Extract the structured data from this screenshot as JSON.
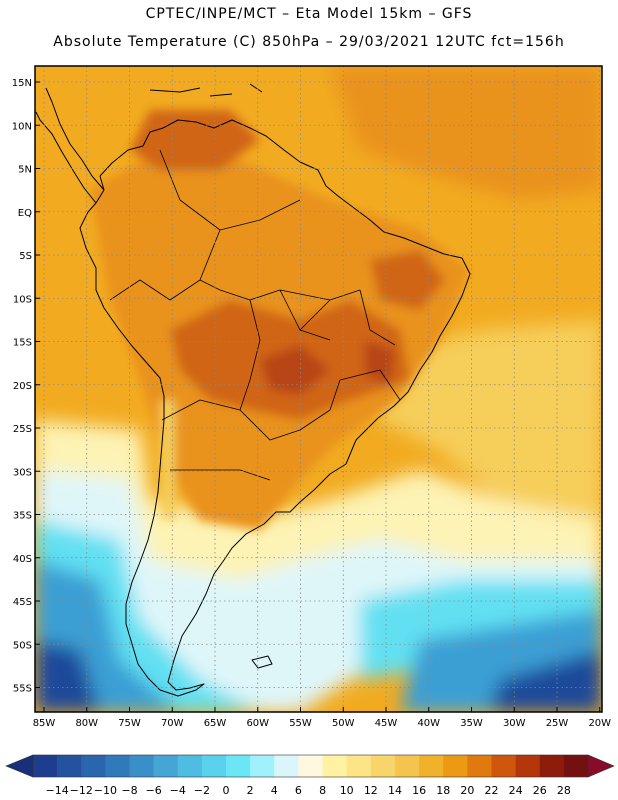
{
  "header": {
    "line1": "CPTEC/INPE/MCT –  Eta Model 15km – GFS",
    "line2": "Absolute Temperature (C) 850hPa – 29/03/2021 12UTC fct=156h"
  },
  "axes": {
    "lat_labels": [
      "15N",
      "10N",
      "5N",
      "EQ",
      "5S",
      "10S",
      "15S",
      "20S",
      "25S",
      "30S",
      "35S",
      "40S",
      "45S",
      "50S",
      "55S"
    ],
    "lon_labels": [
      "85W",
      "80W",
      "75W",
      "70W",
      "65W",
      "60W",
      "55W",
      "50W",
      "45W",
      "40W",
      "35W",
      "30W",
      "25W",
      "20W"
    ]
  },
  "colorbar": {
    "labels": [
      "-14",
      "-12",
      "-10",
      "-8",
      "-6",
      "-4",
      "-2",
      "0",
      "2",
      "4",
      "6",
      "8",
      "10",
      "12",
      "14",
      "16",
      "18",
      "20",
      "22",
      "24",
      "26",
      "28"
    ],
    "colors": [
      "#1f3d8f",
      "#24529e",
      "#2a66ae",
      "#3079bb",
      "#3a8fc8",
      "#45a6d6",
      "#4fbce2",
      "#5ad2ed",
      "#6ae6f5",
      "#9ff1fb",
      "#dbf6fb",
      "#fff8e0",
      "#fff2a2",
      "#fce487",
      "#f8d56a",
      "#f4c44f",
      "#f0b12b",
      "#ec9a14",
      "#e07a0e",
      "#cf560d",
      "#b4360b",
      "#8e1c0b",
      "#741010"
    ],
    "low_arrow_color": "#1a2f7a",
    "high_arrow_color": "#8a0a2a"
  },
  "field_colors": {
    "ocean_warm": "#f2ab21",
    "tropic_hot": "#e9921a",
    "heat_core": "#d06516",
    "heat_peak": "#b84512",
    "mild": "#f6ce5a",
    "pale": "#fdf3b4",
    "cool": "#dff6f9",
    "cyan": "#62e0f2",
    "blue": "#3b9fd4",
    "deep_blue": "#1d4a9a"
  }
}
